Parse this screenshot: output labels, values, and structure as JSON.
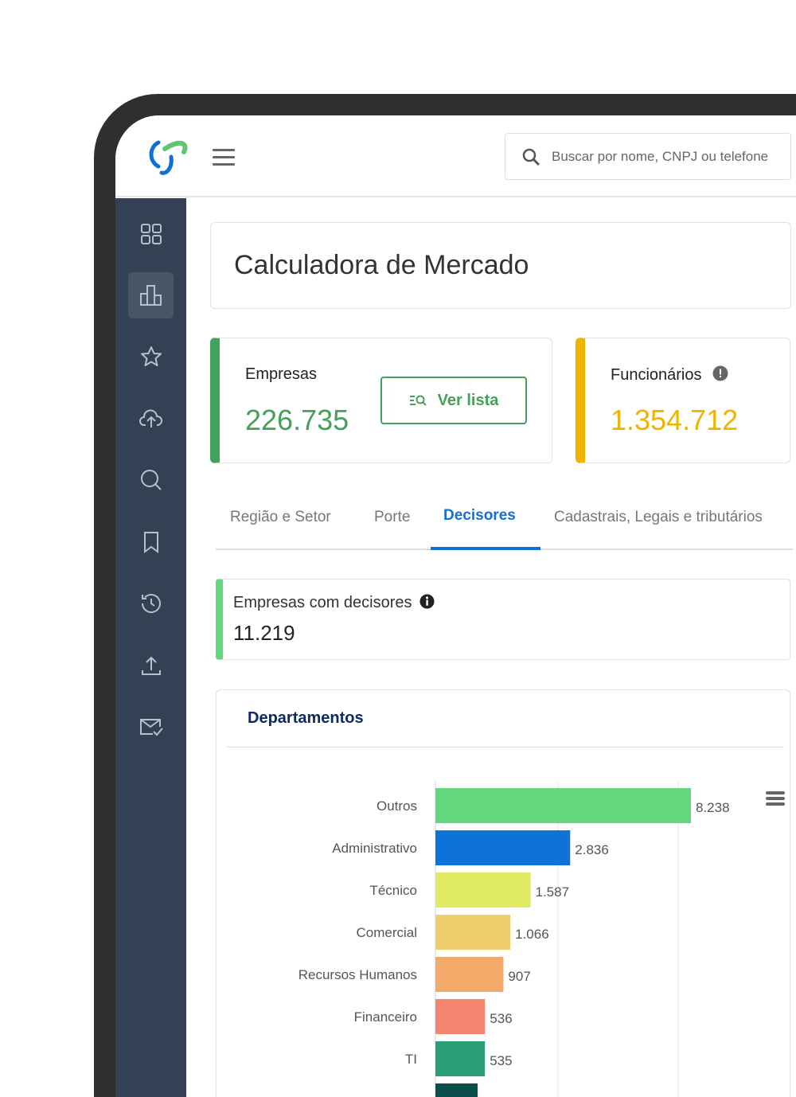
{
  "header": {
    "search_placeholder": "Buscar por nome, CNPJ ou telefone"
  },
  "sidebar": {
    "items": [
      {
        "icon": "grid-icon"
      },
      {
        "icon": "bar-chart-icon",
        "active": true
      },
      {
        "icon": "star-icon"
      },
      {
        "icon": "cloud-upload-icon"
      },
      {
        "icon": "search-icon"
      },
      {
        "icon": "bookmark-icon"
      },
      {
        "icon": "history-icon"
      },
      {
        "icon": "upload-icon"
      },
      {
        "icon": "mail-check-icon"
      }
    ]
  },
  "page": {
    "title": "Calculadora de Mercado"
  },
  "stats": {
    "empresas": {
      "label": "Empresas",
      "value": "226.735",
      "color": "#43a15a",
      "button": "Ver lista"
    },
    "funcionarios": {
      "label": "Funcionários",
      "value": "1.354.712",
      "color": "#f0b400"
    }
  },
  "tabs": [
    {
      "label": "Região e Setor"
    },
    {
      "label": "Porte"
    },
    {
      "label": "Decisores",
      "active": true
    },
    {
      "label": "Cadastrais, Legais e tributários"
    }
  ],
  "decisores": {
    "label": "Empresas com decisores",
    "value": "11.219"
  },
  "chart_data": {
    "type": "bar",
    "orientation": "horizontal",
    "title": "Departamentos",
    "categories": [
      "Outros",
      "Administrativo",
      "Técnico",
      "Comercial",
      "Recursos Humanos",
      "Financeiro",
      "TI"
    ],
    "values": [
      8238,
      2836,
      1587,
      1066,
      907,
      536,
      535
    ],
    "labels": [
      "8.238",
      "2.836",
      "1.587",
      "1.066",
      "907",
      "536",
      "535"
    ],
    "colors": [
      "#62d77e",
      "#0e72d8",
      "#e0ea62",
      "#efcf6b",
      "#f1aa69",
      "#f4846d",
      "#2b9e75"
    ],
    "grid": true
  }
}
